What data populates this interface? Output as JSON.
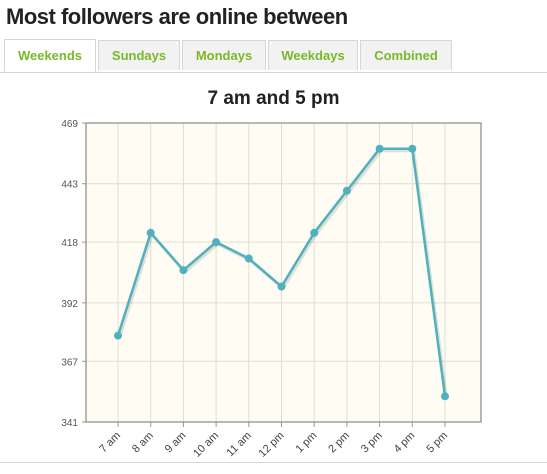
{
  "page": {
    "title": "Most followers are online between"
  },
  "tabs": [
    {
      "label": "Weekends",
      "active": true
    },
    {
      "label": "Sundays",
      "active": false
    },
    {
      "label": "Mondays",
      "active": false
    },
    {
      "label": "Weekdays",
      "active": false
    },
    {
      "label": "Combined",
      "active": false
    }
  ],
  "colors": {
    "accent": "#7ab82a",
    "line": "#4fb0be",
    "plot_background": "#fffdf3",
    "grid": "#e0ddd0"
  },
  "chart_data": {
    "type": "line",
    "title": "7 am and 5 pm",
    "categories": [
      "7 am",
      "8 am",
      "9 am",
      "10 am",
      "11 am",
      "12 pm",
      "1 pm",
      "2 pm",
      "3 pm",
      "4 pm",
      "5 pm"
    ],
    "values": [
      378,
      422,
      406,
      418,
      411,
      399,
      422,
      440,
      458,
      458,
      352
    ],
    "yticks": [
      341,
      367,
      392,
      418,
      443,
      469
    ],
    "ylim": [
      341,
      469
    ],
    "grid": true,
    "xlabel": "",
    "ylabel": ""
  }
}
